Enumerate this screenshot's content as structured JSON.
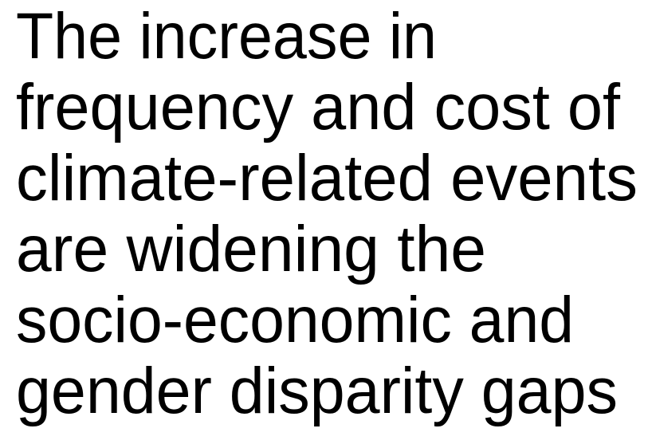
{
  "text": {
    "lines": [
      "The increase in",
      "frequency and cost of",
      "climate-related events",
      "are widening the",
      "socio-economic and",
      "gender disparity gaps"
    ]
  }
}
